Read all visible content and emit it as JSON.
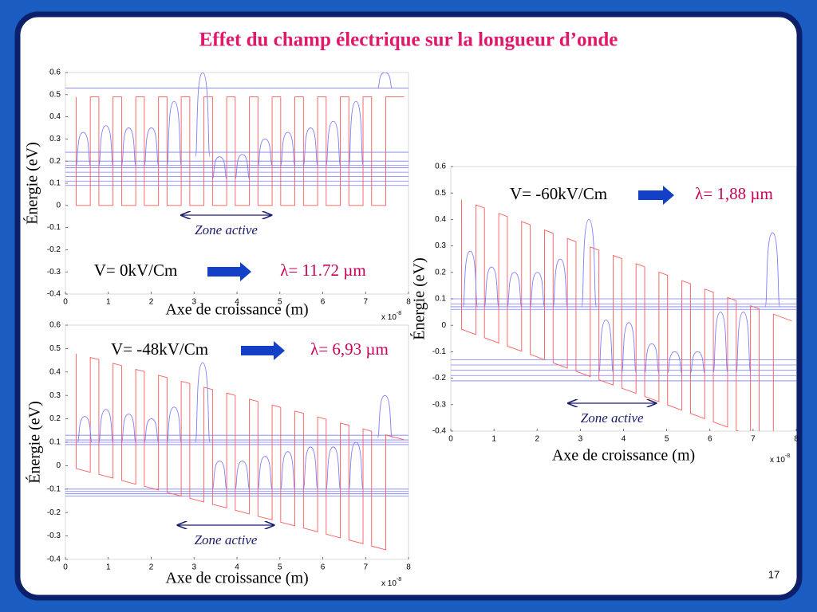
{
  "title": "Effet du champ électrique sur la longueur d’onde",
  "page_number": 17,
  "chart_data": [
    {
      "type": "line",
      "xlabel": "Axe de croissance (m)",
      "ylabel": "Énergie (eV)",
      "x_scale_label": "x 10",
      "x_scale_exponent": "-8",
      "field_label": "V= 0kV/Cm",
      "wavelength_label": "λ= 11.72 µm",
      "zone_active": {
        "label": "Zone active",
        "x": [
          2.7,
          4.8
        ]
      },
      "xlim": [
        0,
        8
      ],
      "ylim": [
        -0.4,
        0.6
      ],
      "xticks": [
        0,
        1,
        2,
        3,
        4,
        5,
        6,
        7,
        8
      ],
      "yticks": [
        -0.4,
        -0.3,
        -0.2,
        -0.1,
        0,
        0.1,
        0.2,
        0.3,
        0.4,
        0.5,
        0.6
      ],
      "series": [
        {
          "color": "#ff5a5a",
          "x": [
            0.25,
            0.25,
            0.58,
            0.58,
            0.78,
            0.78,
            1.11,
            1.11,
            1.31,
            1.31,
            1.64,
            1.64,
            1.84,
            1.84,
            2.17,
            2.17,
            2.37,
            2.37,
            2.7,
            2.7,
            2.9,
            2.9,
            3.23,
            3.23,
            3.43,
            3.43,
            3.76,
            3.76,
            3.96,
            3.96,
            4.29,
            4.29,
            4.49,
            4.49,
            4.82,
            4.82,
            5.02,
            5.02,
            5.35,
            5.35,
            5.55,
            5.55,
            5.88,
            5.88,
            6.08,
            6.08,
            6.41,
            6.41,
            6.61,
            6.61,
            6.94,
            6.94,
            7.14,
            7.14,
            7.47,
            7.47,
            7.9
          ],
          "values": [
            0.49,
            0,
            0,
            0.49,
            0.49,
            0,
            0,
            0.49,
            0.49,
            0,
            0,
            0.49,
            0.49,
            0,
            0,
            0.49,
            0.49,
            0,
            0,
            0.49,
            0.49,
            0,
            0,
            0.49,
            0.49,
            0,
            0,
            0.49,
            0.49,
            0,
            0,
            0.49,
            0.49,
            0,
            0,
            0.49,
            0.49,
            0,
            0,
            0.49,
            0.49,
            0,
            0,
            0.49,
            0.49,
            0,
            0,
            0.49,
            0.49,
            0,
            0,
            0.49,
            0.49,
            0,
            0,
            0.49,
            0.49
          ]
        }
      ],
      "levels": {
        "color": "#7d7dff",
        "values": [
          0.53,
          0.24,
          0.2,
          0.18,
          0.17,
          0.15,
          0.13,
          0.11,
          0.09
        ]
      },
      "peaks": {
        "color": "#7d7dff",
        "x": [
          0.415,
          0.945,
          1.475,
          2.005,
          2.535,
          3.2,
          3.595,
          4.125,
          4.655,
          5.185,
          5.715,
          6.245,
          6.775,
          7.45
        ],
        "values": [
          0.33,
          0.36,
          0.35,
          0.35,
          0.47,
          0.6,
          0.22,
          0.23,
          0.3,
          0.33,
          0.35,
          0.38,
          0.47,
          0.6
        ],
        "base": [
          0.18,
          0.18,
          0.18,
          0.18,
          0.18,
          0.22,
          0.12,
          0.12,
          0.18,
          0.18,
          0.18,
          0.18,
          0.18,
          0.53
        ]
      }
    },
    {
      "type": "line",
      "xlabel": "Axe de croissance (m)",
      "ylabel": "Énergie (eV)",
      "x_scale_label": "x 10",
      "x_scale_exponent": "-8",
      "field_label": "V= -48kV/Cm",
      "wavelength_label": "λ= 6,93 µm",
      "zone_active": {
        "label": "Zone active",
        "x": [
          2.62,
          4.86
        ]
      },
      "xlim": [
        0,
        8
      ],
      "ylim": [
        -0.4,
        0.6
      ],
      "xticks": [
        0,
        1,
        2,
        3,
        4,
        5,
        6,
        7,
        8
      ],
      "yticks": [
        -0.4,
        -0.3,
        -0.2,
        -0.1,
        0,
        0.1,
        0.2,
        0.3,
        0.4,
        0.5,
        0.6
      ],
      "series": [
        {
          "color": "#ff5a5a",
          "x": [
            0.25,
            0.25,
            0.58,
            0.58,
            0.78,
            0.78,
            1.11,
            1.11,
            1.31,
            1.31,
            1.64,
            1.64,
            1.84,
            1.84,
            2.17,
            2.17,
            2.37,
            2.37,
            2.7,
            2.7,
            2.9,
            2.9,
            3.23,
            3.23,
            3.43,
            3.43,
            3.76,
            3.76,
            3.96,
            3.96,
            4.29,
            4.29,
            4.49,
            4.49,
            4.82,
            4.82,
            5.02,
            5.02,
            5.35,
            5.35,
            5.55,
            5.55,
            5.88,
            5.88,
            6.08,
            6.08,
            6.41,
            6.41,
            6.61,
            6.61,
            6.94,
            6.94,
            7.14,
            7.14,
            7.47,
            7.47,
            7.9
          ],
          "values": [
            0.478,
            -0.012,
            -0.028,
            0.462,
            0.453,
            -0.037,
            -0.053,
            0.437,
            0.427,
            -0.063,
            -0.079,
            0.411,
            0.402,
            -0.088,
            -0.104,
            0.386,
            0.376,
            -0.114,
            -0.13,
            0.36,
            0.351,
            -0.139,
            -0.155,
            0.335,
            0.325,
            -0.165,
            -0.18,
            0.31,
            0.3,
            -0.19,
            -0.206,
            0.284,
            0.274,
            -0.216,
            -0.231,
            0.259,
            0.249,
            -0.241,
            -0.257,
            0.233,
            0.224,
            -0.266,
            -0.282,
            0.208,
            0.198,
            -0.292,
            -0.308,
            0.182,
            0.173,
            -0.317,
            -0.333,
            0.157,
            0.147,
            -0.343,
            -0.359,
            0.131,
            0.111
          ]
        }
      ],
      "levels": {
        "color": "#7d7dff",
        "values": [
          0.13,
          0.11,
          0.1,
          0.09,
          -0.1,
          -0.11,
          -0.12,
          -0.13
        ]
      },
      "peaks": {
        "color": "#7d7dff",
        "x": [
          0.45,
          0.945,
          1.475,
          2.005,
          2.535,
          3.2,
          3.595,
          4.125,
          4.655,
          5.185,
          5.715,
          6.245,
          6.775,
          7.45
        ],
        "values": [
          0.21,
          0.24,
          0.22,
          0.2,
          0.25,
          0.44,
          0.02,
          0.02,
          0.04,
          0.06,
          0.08,
          0.08,
          0.1,
          0.3
        ],
        "base": [
          0.1,
          0.1,
          0.1,
          0.1,
          0.1,
          0.1,
          -0.1,
          -0.1,
          -0.1,
          -0.1,
          -0.1,
          -0.1,
          -0.1,
          0.12
        ]
      }
    },
    {
      "type": "line",
      "xlabel": "Axe de croissance (m)",
      "ylabel": "Énergie (eV)",
      "x_scale_label": "x 10",
      "x_scale_exponent": "-8",
      "field_label": "V= -60kV/Cm",
      "wavelength_label": "λ= 1,88 µm",
      "zone_active": {
        "label": "Zone active",
        "x": [
          2.72,
          4.75
        ]
      },
      "xlim": [
        0,
        8
      ],
      "ylim": [
        -0.4,
        0.6
      ],
      "xticks": [
        0,
        1,
        2,
        3,
        4,
        5,
        6,
        7,
        8
      ],
      "yticks": [
        -0.4,
        -0.3,
        -0.2,
        -0.1,
        0,
        0.1,
        0.2,
        0.3,
        0.4,
        0.5,
        0.6
      ],
      "series": [
        {
          "color": "#ff5a5a",
          "x": [
            0.25,
            0.25,
            0.58,
            0.58,
            0.78,
            0.78,
            1.11,
            1.11,
            1.31,
            1.31,
            1.64,
            1.64,
            1.84,
            1.84,
            2.17,
            2.17,
            2.37,
            2.37,
            2.7,
            2.7,
            2.9,
            2.9,
            3.23,
            3.23,
            3.43,
            3.43,
            3.76,
            3.76,
            3.96,
            3.96,
            4.29,
            4.29,
            4.49,
            4.49,
            4.82,
            4.82,
            5.02,
            5.02,
            5.35,
            5.35,
            5.55,
            5.55,
            5.88,
            5.88,
            6.08,
            6.08,
            6.41,
            6.41,
            6.61,
            6.61,
            6.94,
            6.94,
            7.14,
            7.14,
            7.47,
            7.47,
            7.9
          ],
          "values": [
            0.475,
            -0.015,
            -0.035,
            0.455,
            0.443,
            -0.047,
            -0.067,
            0.423,
            0.411,
            -0.079,
            -0.098,
            0.392,
            0.38,
            -0.11,
            -0.13,
            0.36,
            0.348,
            -0.142,
            -0.162,
            0.328,
            0.316,
            -0.174,
            -0.194,
            0.296,
            0.284,
            -0.206,
            -0.226,
            0.264,
            0.252,
            -0.238,
            -0.257,
            0.233,
            0.221,
            -0.269,
            -0.289,
            0.201,
            0.189,
            -0.301,
            -0.321,
            0.169,
            0.157,
            -0.333,
            -0.353,
            0.137,
            0.125,
            -0.365,
            -0.385,
            0.105,
            0.093,
            -0.397,
            -0.416,
            0.074,
            0.062,
            -0.428,
            -0.448,
            0.042,
            0.016
          ]
        }
      ],
      "levels": {
        "color": "#7d7dff",
        "values": [
          0.1,
          0.08,
          0.07,
          0.06,
          -0.13,
          -0.15,
          -0.17,
          -0.19,
          -0.21
        ]
      },
      "peaks": {
        "color": "#7d7dff",
        "x": [
          0.45,
          0.945,
          1.475,
          2.005,
          2.535,
          3.2,
          3.595,
          4.125,
          4.655,
          5.185,
          5.715,
          6.245,
          6.775,
          7.45
        ],
        "values": [
          0.28,
          0.22,
          0.2,
          0.2,
          0.25,
          0.4,
          0.02,
          0.01,
          -0.07,
          -0.1,
          -0.1,
          0.05,
          0.05,
          0.35
        ],
        "base": [
          0.07,
          0.07,
          0.07,
          0.07,
          0.07,
          0.07,
          -0.18,
          -0.18,
          -0.18,
          -0.18,
          -0.18,
          -0.18,
          -0.18,
          0.07
        ]
      }
    }
  ]
}
